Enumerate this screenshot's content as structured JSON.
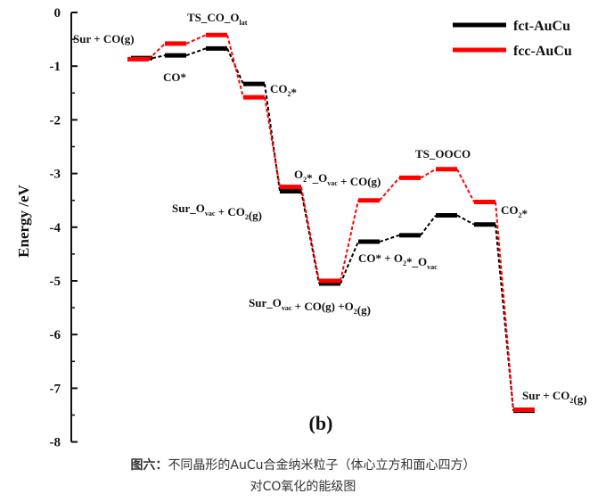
{
  "chart_data": {
    "type": "line",
    "panel_label": "(b)",
    "ylabel": "Energy /eV",
    "ylim": [
      -8,
      0
    ],
    "yticks": [
      "0",
      "-1",
      "-2",
      "-3",
      "-4",
      "-5",
      "-6",
      "-7",
      "-8"
    ],
    "legend_position": "top-right",
    "series": [
      {
        "name": "fct-AuCu",
        "color": "#000000",
        "levels": [
          {
            "x": [
              147,
              171
            ],
            "y": -0.85
          },
          {
            "x": [
              185,
              209
            ],
            "y": -0.8
          },
          {
            "x": [
              231,
              255
            ],
            "y": -0.67
          },
          {
            "x": [
              273,
              297
            ],
            "y": -1.33
          },
          {
            "x": [
              314,
              338
            ],
            "y": -3.33
          },
          {
            "x": [
              358,
              382
            ],
            "y": -5.05
          },
          {
            "x": [
              402,
              426
            ],
            "y": -4.27
          },
          {
            "x": [
              448,
              472
            ],
            "y": -4.15
          },
          {
            "x": [
              489,
              513
            ],
            "y": -3.78
          },
          {
            "x": [
              532,
              556
            ],
            "y": -3.95
          },
          {
            "x": [
              576,
              600
            ],
            "y": -7.42
          }
        ]
      },
      {
        "name": "fcc-AuCu",
        "color": "#ff0000",
        "levels": [
          {
            "x": [
              143,
              167
            ],
            "y": -0.87
          },
          {
            "x": [
              185,
              209
            ],
            "y": -0.58
          },
          {
            "x": [
              231,
              255
            ],
            "y": -0.42
          },
          {
            "x": [
              273,
              297
            ],
            "y": -1.58
          },
          {
            "x": [
              314,
              338
            ],
            "y": -3.25
          },
          {
            "x": [
              358,
              382
            ],
            "y": -5.0
          },
          {
            "x": [
              402,
              426
            ],
            "y": -3.5
          },
          {
            "x": [
              448,
              472
            ],
            "y": -3.08
          },
          {
            "x": [
              489,
              513
            ],
            "y": -2.92
          },
          {
            "x": [
              532,
              556
            ],
            "y": -3.53
          },
          {
            "x": [
              576,
              600
            ],
            "y": -7.4
          }
        ]
      }
    ],
    "annotations": [
      {
        "segments": [
          {
            "t": "Sur + CO(g)"
          }
        ]
      },
      {
        "segments": [
          {
            "t": "TS_CO_O"
          },
          {
            "t": "lat",
            "sub": true
          }
        ]
      },
      {
        "segments": [
          {
            "t": "CO*"
          }
        ]
      },
      {
        "segments": [
          {
            "t": "CO"
          },
          {
            "t": "2",
            "sub": true
          },
          {
            "t": "*"
          }
        ]
      },
      {
        "segments": [
          {
            "t": "O"
          },
          {
            "t": "2",
            "sub": true
          },
          {
            "t": "*_O"
          },
          {
            "t": "vac",
            "sub": true
          },
          {
            "t": " + CO(g)"
          }
        ]
      },
      {
        "segments": [
          {
            "t": "Sur_O"
          },
          {
            "t": "vac",
            "sub": true
          },
          {
            "t": " + CO"
          },
          {
            "t": "2",
            "sub": true
          },
          {
            "t": "(g)"
          }
        ]
      },
      {
        "segments": [
          {
            "t": "TS_OOCO"
          }
        ]
      },
      {
        "segments": [
          {
            "t": "CO"
          },
          {
            "t": "2",
            "sub": true
          },
          {
            "t": "*"
          }
        ]
      },
      {
        "segments": [
          {
            "t": "CO* + O"
          },
          {
            "t": "2",
            "sub": true
          },
          {
            "t": "*_O"
          },
          {
            "t": "vac",
            "sub": true
          }
        ]
      },
      {
        "segments": [
          {
            "t": "Sur_O"
          },
          {
            "t": "vac",
            "sub": true
          },
          {
            "t": " + CO(g) +O"
          },
          {
            "t": "2",
            "sub": true
          },
          {
            "t": "(g)"
          }
        ]
      },
      {
        "segments": [
          {
            "t": "Sur + CO"
          },
          {
            "t": "2",
            "sub": true
          },
          {
            "t": "(g)"
          }
        ]
      }
    ]
  },
  "caption": {
    "heading": "图六：",
    "line1": "不同晶形的AuCu合金纳米粒子（体心立方和面心四方）",
    "line2": "对CO氧化的能级图"
  }
}
